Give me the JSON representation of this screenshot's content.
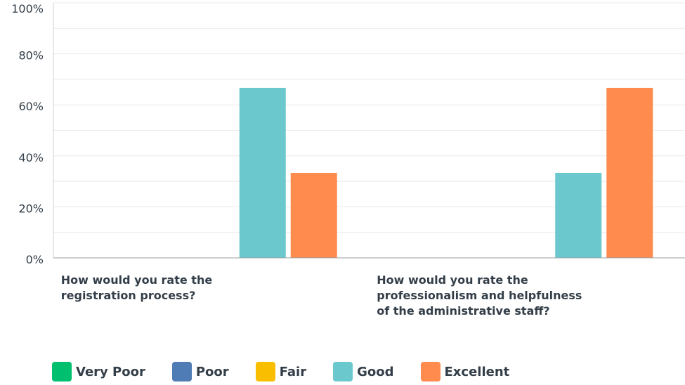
{
  "chart_data": {
    "type": "bar",
    "categories": [
      [
        "How would you rate the",
        "registration process?"
      ],
      [
        "How would you rate the",
        "professionalism and helpfulness",
        "of the administrative staff?"
      ]
    ],
    "series": [
      {
        "name": "Very Poor",
        "color": "#00bf6f",
        "values": [
          0,
          0
        ]
      },
      {
        "name": "Poor",
        "color": "#507cb6",
        "values": [
          0,
          0
        ]
      },
      {
        "name": "Fair",
        "color": "#f9be00",
        "values": [
          0,
          0
        ]
      },
      {
        "name": "Good",
        "color": "#6bc8cd",
        "values": [
          66.67,
          33.33
        ]
      },
      {
        "name": "Excellent",
        "color": "#ff8b4f",
        "values": [
          33.33,
          66.67
        ]
      }
    ],
    "ylim": [
      0,
      100
    ],
    "yticks": [
      "0%",
      "20%",
      "40%",
      "60%",
      "80%",
      "100%"
    ],
    "grid": true,
    "legend_position": "bottom"
  }
}
